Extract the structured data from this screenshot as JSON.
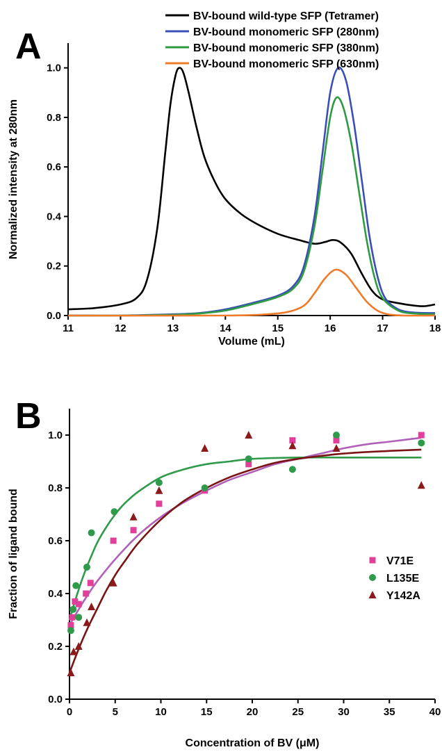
{
  "chart_data": [
    {
      "panel_label": "A",
      "type": "line",
      "xlabel": "Volume (mL)",
      "ylabel": "Normalized intensity at 280nm",
      "xlim": [
        11,
        18
      ],
      "ylim": [
        0,
        1.1
      ],
      "xticks": [
        "11",
        "12",
        "13",
        "14",
        "15",
        "16",
        "17",
        "18"
      ],
      "yticks": [
        "0.0",
        "0.2",
        "0.4",
        "0.6",
        "0.8",
        "1.0"
      ],
      "legend_position": "top-right",
      "series": [
        {
          "name": "BV-bound wild-type SFP (Tetramer)",
          "color": "#000000",
          "points": [
            [
              11,
              0.025
            ],
            [
              11.5,
              0.03
            ],
            [
              12,
              0.045
            ],
            [
              12.3,
              0.07
            ],
            [
              12.5,
              0.14
            ],
            [
              12.7,
              0.35
            ],
            [
              12.85,
              0.65
            ],
            [
              12.95,
              0.85
            ],
            [
              13.05,
              0.97
            ],
            [
              13.12,
              1.0
            ],
            [
              13.2,
              0.98
            ],
            [
              13.3,
              0.9
            ],
            [
              13.45,
              0.76
            ],
            [
              13.6,
              0.64
            ],
            [
              13.8,
              0.54
            ],
            [
              14,
              0.47
            ],
            [
              14.3,
              0.41
            ],
            [
              14.6,
              0.37
            ],
            [
              15,
              0.33
            ],
            [
              15.4,
              0.305
            ],
            [
              15.7,
              0.29
            ],
            [
              15.9,
              0.297
            ],
            [
              16.05,
              0.305
            ],
            [
              16.2,
              0.295
            ],
            [
              16.4,
              0.25
            ],
            [
              16.6,
              0.17
            ],
            [
              16.8,
              0.1
            ],
            [
              17,
              0.065
            ],
            [
              17.3,
              0.05
            ],
            [
              17.6,
              0.04
            ],
            [
              17.8,
              0.038
            ],
            [
              18,
              0.045
            ]
          ]
        },
        {
          "name": "BV-bound monomeric SFP (280nm)",
          "color": "#3a4fb5",
          "points": [
            [
              11,
              0.0
            ],
            [
              12,
              0.0
            ],
            [
              13,
              0.005
            ],
            [
              13.5,
              0.01
            ],
            [
              14,
              0.025
            ],
            [
              14.5,
              0.05
            ],
            [
              15,
              0.08
            ],
            [
              15.3,
              0.12
            ],
            [
              15.5,
              0.2
            ],
            [
              15.7,
              0.4
            ],
            [
              15.85,
              0.65
            ],
            [
              16,
              0.9
            ],
            [
              16.15,
              1.0
            ],
            [
              16.3,
              0.95
            ],
            [
              16.45,
              0.78
            ],
            [
              16.6,
              0.55
            ],
            [
              16.75,
              0.32
            ],
            [
              16.9,
              0.16
            ],
            [
              17.05,
              0.07
            ],
            [
              17.3,
              0.025
            ],
            [
              17.6,
              0.012
            ],
            [
              18,
              0.01
            ]
          ]
        },
        {
          "name": "BV-bound monomeric SFP (380nm)",
          "color": "#2e9a42",
          "points": [
            [
              11,
              0.0
            ],
            [
              12,
              0.0
            ],
            [
              13,
              0.003
            ],
            [
              13.5,
              0.008
            ],
            [
              14,
              0.02
            ],
            [
              14.5,
              0.045
            ],
            [
              15,
              0.075
            ],
            [
              15.3,
              0.11
            ],
            [
              15.5,
              0.18
            ],
            [
              15.7,
              0.36
            ],
            [
              15.85,
              0.58
            ],
            [
              16,
              0.8
            ],
            [
              16.12,
              0.88
            ],
            [
              16.25,
              0.84
            ],
            [
              16.4,
              0.7
            ],
            [
              16.55,
              0.5
            ],
            [
              16.7,
              0.3
            ],
            [
              16.85,
              0.15
            ],
            [
              17,
              0.07
            ],
            [
              17.3,
              0.02
            ],
            [
              17.6,
              0.008
            ],
            [
              18,
              0.005
            ]
          ]
        },
        {
          "name": "BV-bound monomeric SFP (630nm)",
          "color": "#ef7b2a",
          "points": [
            [
              11,
              0.0
            ],
            [
              14,
              0.0
            ],
            [
              14.8,
              0.005
            ],
            [
              15.2,
              0.015
            ],
            [
              15.5,
              0.04
            ],
            [
              15.7,
              0.09
            ],
            [
              15.9,
              0.15
            ],
            [
              16.1,
              0.185
            ],
            [
              16.3,
              0.165
            ],
            [
              16.5,
              0.11
            ],
            [
              16.7,
              0.055
            ],
            [
              16.9,
              0.02
            ],
            [
              17.1,
              0.005
            ],
            [
              17.4,
              0.0
            ],
            [
              18,
              0.0
            ]
          ]
        }
      ]
    },
    {
      "panel_label": "B",
      "type": "scatter",
      "xlabel": "Concentration of BV (μM)",
      "ylabel": "Fraction of ligand bound",
      "xlim": [
        0,
        40
      ],
      "ylim": [
        0,
        1.1
      ],
      "xticks": [
        "0",
        "5",
        "10",
        "15",
        "20",
        "25",
        "30",
        "35",
        "40"
      ],
      "yticks": [
        "0.0",
        "0.2",
        "0.4",
        "0.6",
        "0.8",
        "1.0"
      ],
      "legend_position": "right",
      "series": [
        {
          "name": "V71E",
          "color": "#e0409a",
          "marker": "square",
          "points": [
            [
              0.15,
              0.28
            ],
            [
              0.3,
              0.31
            ],
            [
              0.6,
              0.37
            ],
            [
              1.0,
              0.36
            ],
            [
              1.8,
              0.4
            ],
            [
              2.3,
              0.44
            ],
            [
              4.8,
              0.6
            ],
            [
              7.0,
              0.64
            ],
            [
              9.8,
              0.74
            ],
            [
              14.8,
              0.79
            ],
            [
              19.6,
              0.89
            ],
            [
              24.4,
              0.98
            ],
            [
              29.2,
              0.98
            ],
            [
              38.5,
              1.0
            ]
          ],
          "fit": [
            [
              0,
              0.28
            ],
            [
              1,
              0.34
            ],
            [
              2,
              0.395
            ],
            [
              3,
              0.445
            ],
            [
              5,
              0.53
            ],
            [
              7.5,
              0.62
            ],
            [
              10,
              0.69
            ],
            [
              12.5,
              0.745
            ],
            [
              15,
              0.79
            ],
            [
              17.5,
              0.83
            ],
            [
              20,
              0.86
            ],
            [
              22.5,
              0.89
            ],
            [
              25,
              0.91
            ],
            [
              27.5,
              0.93
            ],
            [
              30,
              0.95
            ],
            [
              32.5,
              0.965
            ],
            [
              35,
              0.975
            ],
            [
              38.5,
              0.99
            ]
          ]
        },
        {
          "name": "L135E",
          "color": "#2e9a4a",
          "marker": "circle",
          "points": [
            [
              0.15,
              0.26
            ],
            [
              0.4,
              0.34
            ],
            [
              0.7,
              0.43
            ],
            [
              1.0,
              0.31
            ],
            [
              1.9,
              0.5
            ],
            [
              2.4,
              0.63
            ],
            [
              4.9,
              0.71
            ],
            [
              9.8,
              0.82
            ],
            [
              14.8,
              0.8
            ],
            [
              19.6,
              0.91
            ],
            [
              24.4,
              0.87
            ],
            [
              29.2,
              1.0
            ],
            [
              38.5,
              0.97
            ]
          ],
          "fit": [
            [
              0,
              0.3
            ],
            [
              0.5,
              0.36
            ],
            [
              1,
              0.415
            ],
            [
              1.5,
              0.465
            ],
            [
              2,
              0.51
            ],
            [
              3,
              0.59
            ],
            [
              4,
              0.65
            ],
            [
              5,
              0.7
            ],
            [
              6,
              0.74
            ],
            [
              7.5,
              0.785
            ],
            [
              10,
              0.84
            ],
            [
              12.5,
              0.87
            ],
            [
              15,
              0.89
            ],
            [
              17.5,
              0.9
            ],
            [
              20,
              0.91
            ],
            [
              25,
              0.915
            ],
            [
              30,
              0.915
            ],
            [
              38.5,
              0.915
            ]
          ]
        },
        {
          "name": "Y142A",
          "color": "#8b1a1a",
          "marker": "triangle",
          "points": [
            [
              0.15,
              0.1
            ],
            [
              0.45,
              0.18
            ],
            [
              1.0,
              0.2
            ],
            [
              1.9,
              0.29
            ],
            [
              2.4,
              0.35
            ],
            [
              4.8,
              0.44
            ],
            [
              7.0,
              0.69
            ],
            [
              9.8,
              0.79
            ],
            [
              14.8,
              0.95
            ],
            [
              19.6,
              1.0
            ],
            [
              24.4,
              0.96
            ],
            [
              29.2,
              0.95
            ],
            [
              38.5,
              0.81
            ]
          ],
          "fit": [
            [
              0,
              0.1
            ],
            [
              1,
              0.19
            ],
            [
              2,
              0.27
            ],
            [
              3,
              0.34
            ],
            [
              4,
              0.41
            ],
            [
              5,
              0.47
            ],
            [
              6,
              0.52
            ],
            [
              7.5,
              0.59
            ],
            [
              10,
              0.68
            ],
            [
              12.5,
              0.75
            ],
            [
              15,
              0.8
            ],
            [
              17.5,
              0.84
            ],
            [
              20,
              0.87
            ],
            [
              22.5,
              0.895
            ],
            [
              25,
              0.91
            ],
            [
              30,
              0.93
            ],
            [
              35,
              0.94
            ],
            [
              38.5,
              0.945
            ]
          ]
        }
      ]
    }
  ]
}
